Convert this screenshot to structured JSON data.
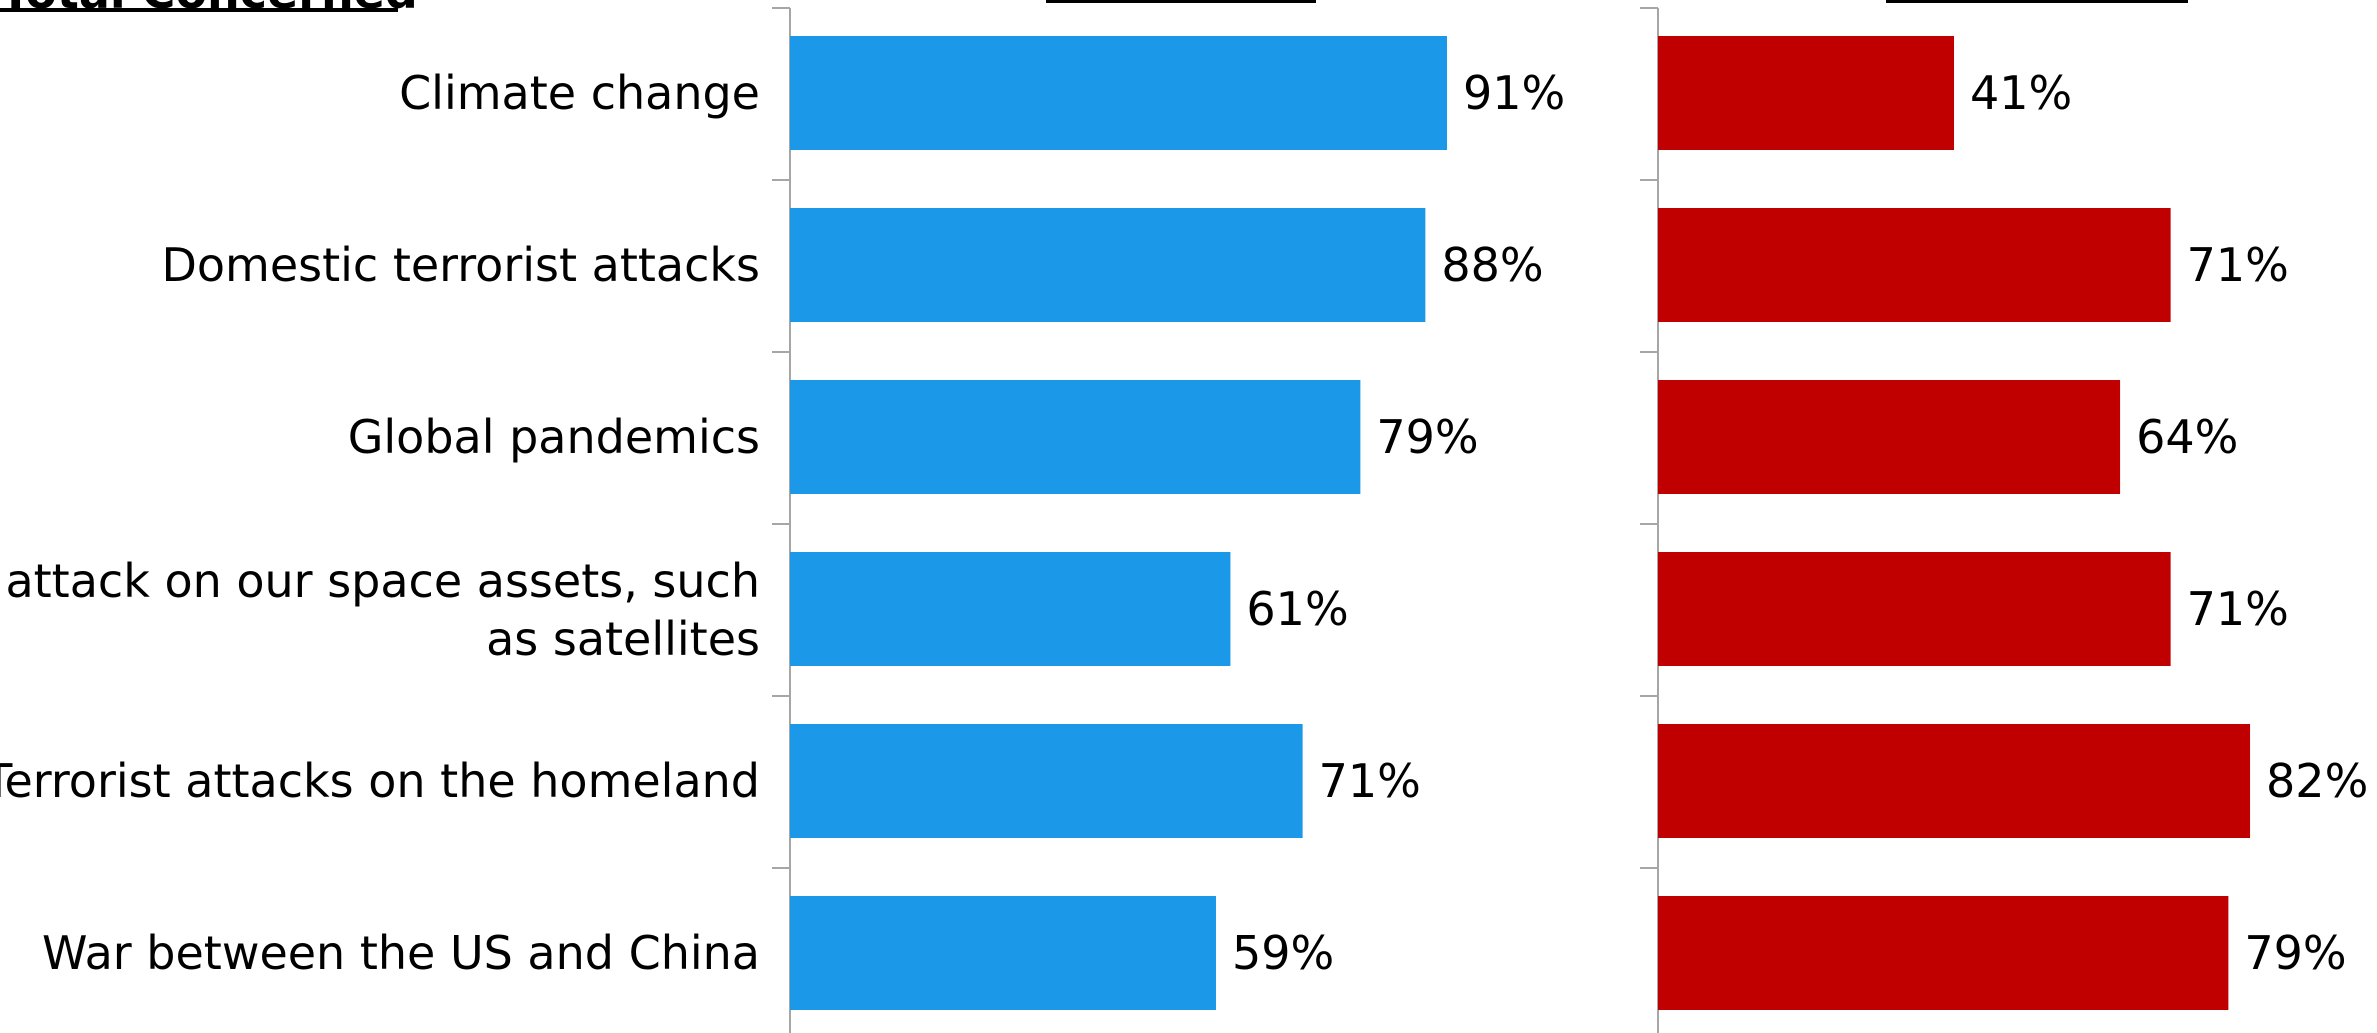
{
  "chart_data": {
    "type": "bar",
    "orientation": "horizontal",
    "header_label": "Total Concerned",
    "categories": [
      "Climate change",
      "Domestic terrorist attacks",
      "Global pandemics",
      "An attack on our space assets, such as satellites",
      "Terrorist attacks on the homeland",
      "War between the US and China"
    ],
    "series": [
      {
        "color": "#1B98E8",
        "values": [
          91,
          88,
          79,
          61,
          71,
          59
        ],
        "value_labels": [
          "91%",
          "88%",
          "79%",
          "61%",
          "71%",
          "59%"
        ]
      },
      {
        "color": "#C00000",
        "values": [
          41,
          71,
          64,
          71,
          82,
          79
        ],
        "value_labels": [
          "41%",
          "71%",
          "64%",
          "71%",
          "82%",
          "79%"
        ]
      }
    ],
    "xlim": [
      0,
      100
    ],
    "unit": "%",
    "grid": false
  }
}
